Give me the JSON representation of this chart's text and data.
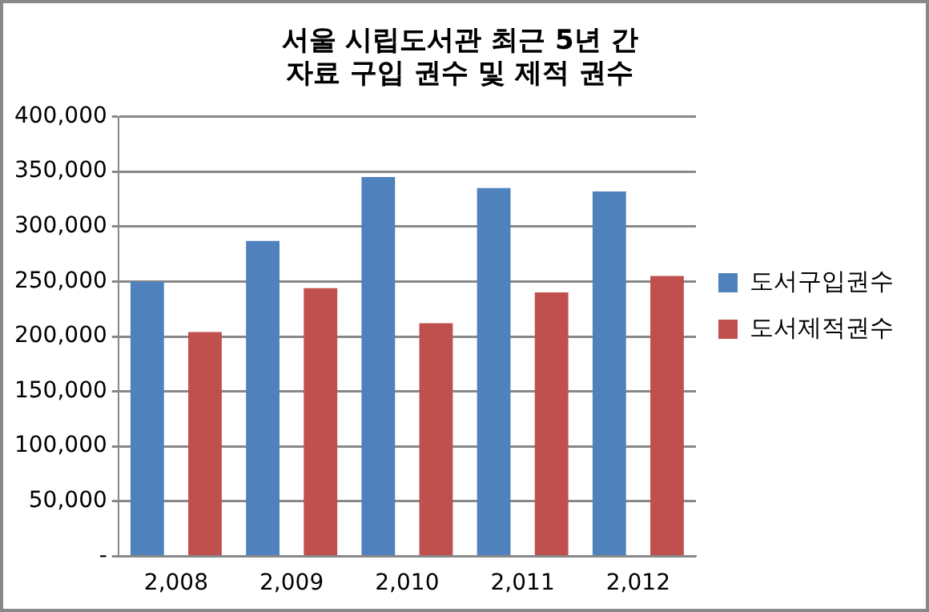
{
  "chart_data": {
    "type": "bar",
    "title": "서울 시립도서관 최근 5년 간\n자료 구입 권수 및 제적 권수",
    "categories": [
      "2,008",
      "2,009",
      "2,010",
      "2,011",
      "2,012"
    ],
    "series": [
      {
        "name": "도서구입권수",
        "color": "#4f81bd",
        "values": [
          250000,
          287000,
          345000,
          335000,
          332000
        ]
      },
      {
        "name": "도서제적권수",
        "color": "#c0504d",
        "values": [
          204000,
          244000,
          212000,
          240000,
          255000
        ]
      }
    ],
    "ylim": [
      0,
      400000
    ],
    "yticks": [
      {
        "value": 0,
        "label": "-"
      },
      {
        "value": 50000,
        "label": "50,000"
      },
      {
        "value": 100000,
        "label": "100,000"
      },
      {
        "value": 150000,
        "label": "150,000"
      },
      {
        "value": 200000,
        "label": "200,000"
      },
      {
        "value": 250000,
        "label": "250,000"
      },
      {
        "value": 300000,
        "label": "300,000"
      },
      {
        "value": 350000,
        "label": "350,000"
      },
      {
        "value": 400000,
        "label": "400,000"
      }
    ],
    "grid": "y",
    "legend": "right"
  }
}
